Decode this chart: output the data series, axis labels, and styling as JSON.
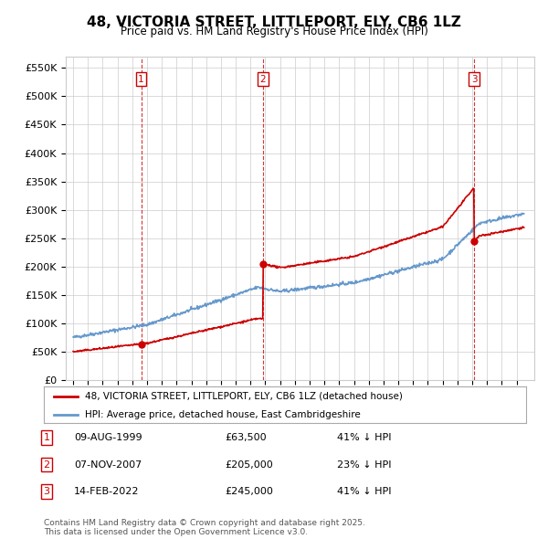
{
  "title": "48, VICTORIA STREET, LITTLEPORT, ELY, CB6 1LZ",
  "subtitle": "Price paid vs. HM Land Registry's House Price Index (HPI)",
  "ylim": [
    0,
    570000
  ],
  "yticks": [
    0,
    50000,
    100000,
    150000,
    200000,
    250000,
    300000,
    350000,
    400000,
    450000,
    500000,
    550000
  ],
  "sale_points": [
    {
      "label": "1",
      "date_num": 1999.6,
      "price": 63500
    },
    {
      "label": "2",
      "date_num": 2007.85,
      "price": 205000
    },
    {
      "label": "3",
      "date_num": 2022.12,
      "price": 245000
    }
  ],
  "vline_dates": [
    1999.6,
    2007.85,
    2022.12
  ],
  "legend_entries": [
    "48, VICTORIA STREET, LITTLEPORT, ELY, CB6 1LZ (detached house)",
    "HPI: Average price, detached house, East Cambridgeshire"
  ],
  "table_rows": [
    {
      "num": "1",
      "date": "09-AUG-1999",
      "price": "£63,500",
      "pct": "41% ↓ HPI"
    },
    {
      "num": "2",
      "date": "07-NOV-2007",
      "price": "£205,000",
      "pct": "23% ↓ HPI"
    },
    {
      "num": "3",
      "date": "14-FEB-2022",
      "price": "£245,000",
      "pct": "41% ↓ HPI"
    }
  ],
  "copyright_text": "Contains HM Land Registry data © Crown copyright and database right 2025.\nThis data is licensed under the Open Government Licence v3.0.",
  "line_color_red": "#cc0000",
  "line_color_blue": "#6699cc",
  "vline_color": "#cc0000",
  "background_color": "#ffffff",
  "grid_color": "#cccccc"
}
